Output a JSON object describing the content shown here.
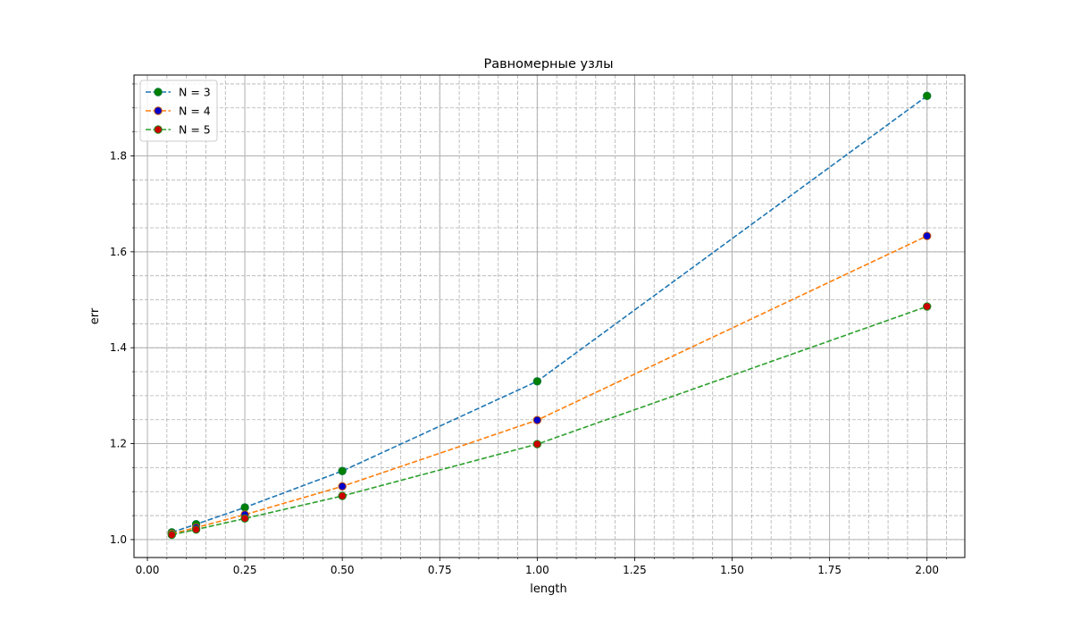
{
  "chart_data": {
    "type": "line",
    "title": "Равномерные узлы",
    "xlabel": "length",
    "ylabel": "err",
    "xlim": [
      -0.0344,
      2.0969
    ],
    "ylim": [
      0.9626,
      1.9685
    ],
    "x_ticks": [
      0.0,
      0.25,
      0.5,
      0.75,
      1.0,
      1.25,
      1.5,
      1.75,
      2.0
    ],
    "x_tick_labels": [
      "0.00",
      "0.25",
      "0.50",
      "0.75",
      "1.00",
      "1.25",
      "1.50",
      "1.75",
      "2.00"
    ],
    "y_ticks": [
      1.0,
      1.2,
      1.4,
      1.6,
      1.8
    ],
    "y_tick_labels": [
      "1.0",
      "1.2",
      "1.4",
      "1.6",
      "1.8"
    ],
    "x_minor_step": 0.05,
    "y_minor_step": 0.05,
    "grid": true,
    "legend_position": "top-left",
    "series": [
      {
        "name": "N = 3",
        "line_color": "#1f77b4",
        "marker_face": "#008000",
        "marker_edge": "#0a7a3a",
        "x": [
          0.0625,
          0.125,
          0.25,
          0.5,
          1.0,
          2.0
        ],
        "y": [
          1.015,
          1.032,
          1.067,
          1.143,
          1.33,
          1.925
        ]
      },
      {
        "name": "N = 4",
        "line_color": "#ff7f0e",
        "marker_face": "#0000cc",
        "marker_edge": "#c25a10",
        "x": [
          0.0625,
          0.125,
          0.25,
          0.5,
          1.0,
          2.0
        ],
        "y": [
          1.012,
          1.025,
          1.052,
          1.111,
          1.249,
          1.633
        ]
      },
      {
        "name": "N = 5",
        "line_color": "#2ca02c",
        "marker_face": "#cc0000",
        "marker_edge": "#1f8a1f",
        "x": [
          0.0625,
          0.125,
          0.25,
          0.5,
          1.0,
          2.0
        ],
        "y": [
          1.01,
          1.021,
          1.044,
          1.091,
          1.199,
          1.486
        ]
      }
    ]
  }
}
